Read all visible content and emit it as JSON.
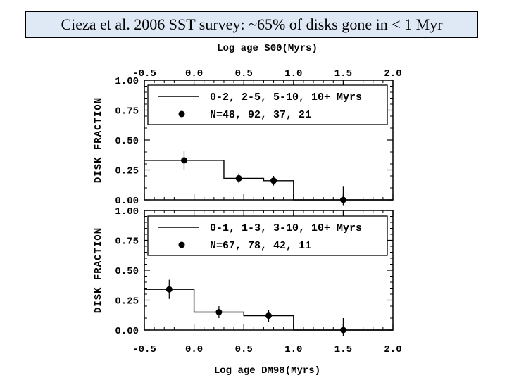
{
  "title": "Cieza et al. 2006 SST survey: ~65% of disks gone in < 1 Myr",
  "chart_data": [
    {
      "type": "line",
      "panel": "top",
      "xlabel": "Log age S00(Myrs)",
      "ylabel": "DISK FRACTION",
      "xlim": [
        -0.5,
        2.0
      ],
      "ylim": [
        0.0,
        1.0
      ],
      "xticks": [
        "-0.5",
        "0.0",
        "0.5",
        "1.0",
        "1.5",
        "2.0"
      ],
      "yticks": [
        "0.00",
        "0.25",
        "0.50",
        "0.75",
        "1.00"
      ],
      "legend_line": "0-2, 2-5, 5-10, 10+ Myrs",
      "legend_points": "N=48, 92, 37, 21",
      "step": [
        {
          "x0": -0.5,
          "x1": 0.3,
          "y": 0.33
        },
        {
          "x0": 0.3,
          "x1": 0.7,
          "y": 0.18
        },
        {
          "x0": 0.7,
          "x1": 1.0,
          "y": 0.16
        },
        {
          "x0": 1.0,
          "x1": 2.0,
          "y": 0.0
        }
      ],
      "points": [
        {
          "x": -0.1,
          "y": 0.33,
          "err": 0.08
        },
        {
          "x": 0.45,
          "y": 0.18,
          "err": 0.04
        },
        {
          "x": 0.8,
          "y": 0.16,
          "err": 0.04
        },
        {
          "x": 1.5,
          "y": 0.0,
          "err": 0.11
        }
      ]
    },
    {
      "type": "line",
      "panel": "bottom",
      "xlabel": "Log age DM98(Myrs)",
      "ylabel": "DISK FRACTION",
      "xlim": [
        -0.5,
        2.0
      ],
      "ylim": [
        0.0,
        1.0
      ],
      "xticks": [
        "-0.5",
        "0.0",
        "0.5",
        "1.0",
        "1.5",
        "2.0"
      ],
      "yticks": [
        "0.00",
        "0.25",
        "0.50",
        "0.75",
        "1.00"
      ],
      "legend_line": "0-1, 1-3, 3-10, 10+ Myrs",
      "legend_points": "N=67, 78, 42, 11",
      "step": [
        {
          "x0": -0.5,
          "x1": 0.0,
          "y": 0.34
        },
        {
          "x0": 0.0,
          "x1": 0.5,
          "y": 0.15
        },
        {
          "x0": 0.5,
          "x1": 1.0,
          "y": 0.12
        },
        {
          "x0": 1.0,
          "x1": 2.0,
          "y": 0.0
        }
      ],
      "points": [
        {
          "x": -0.25,
          "y": 0.34,
          "err": 0.08
        },
        {
          "x": 0.25,
          "y": 0.15,
          "err": 0.05
        },
        {
          "x": 0.75,
          "y": 0.12,
          "err": 0.05
        },
        {
          "x": 1.5,
          "y": 0.0,
          "err": 0.1
        }
      ]
    }
  ]
}
